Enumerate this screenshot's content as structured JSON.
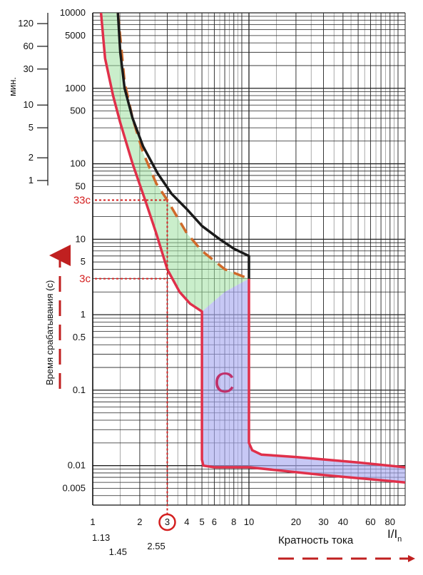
{
  "chart_data": {
    "type": "area",
    "title": "",
    "y_axis": {
      "label": "Время срабатывания (с)",
      "scale": "log",
      "range": [
        0.003,
        10000
      ],
      "tick_labels": [
        "10000",
        "5000",
        "1000",
        "500",
        "100",
        "50",
        "10",
        "5",
        "1",
        "0.5",
        "0.1",
        "0.01",
        "0.005"
      ],
      "tick_values": [
        10000,
        5000,
        1000,
        500,
        100,
        50,
        10,
        5,
        1,
        0.5,
        0.1,
        0.01,
        0.005
      ]
    },
    "minutes_axis": {
      "label": "мин.",
      "tick_labels": [
        "120",
        "60",
        "30",
        "10",
        "5",
        "2",
        "1"
      ],
      "tick_values": [
        120,
        60,
        30,
        10,
        5,
        2,
        1
      ]
    },
    "x_axis": {
      "label": "Кратность тока",
      "symbol": "I/I",
      "symbol_sub": "n",
      "scale": "log",
      "range": [
        1,
        100
      ],
      "tick_labels": [
        "1",
        "2",
        "3",
        "4",
        "5",
        "6",
        "8",
        "10",
        "20",
        "30",
        "40",
        "60",
        "80"
      ],
      "tick_values": [
        1,
        2,
        3,
        4,
        5,
        6,
        8,
        10,
        20,
        30,
        40,
        60,
        80
      ],
      "extra_labels": [
        "1.13",
        "1.45",
        "2.55"
      ],
      "extra_values": [
        1.13,
        1.45,
        2.55
      ]
    },
    "curve_label": "C",
    "annotations": [
      {
        "text": "33c",
        "x": 3,
        "y": 33
      },
      {
        "text": "3c",
        "x": 3,
        "y": 3
      }
    ],
    "series": [
      {
        "role": "lower-boundary",
        "color": "#e0304a",
        "x": [
          1.13,
          1.2,
          1.35,
          1.5,
          1.8,
          2.2,
          2.55,
          3,
          3.6,
          4.2,
          5,
          5,
          5.1,
          6,
          10,
          30,
          100
        ],
        "y": [
          10000,
          2500,
          800,
          350,
          100,
          30,
          12,
          4,
          2,
          1.4,
          1.1,
          0.012,
          0.01,
          0.0095,
          0.0095,
          0.0075,
          0.006
        ]
      },
      {
        "role": "tripping-boundary-dashed",
        "color": "#d06a2a",
        "dashed": true,
        "x": [
          1.45,
          1.6,
          1.8,
          2.1,
          2.55,
          3,
          4,
          5,
          7,
          10
        ],
        "y": [
          10000,
          1200,
          400,
          140,
          55,
          33,
          12,
          7,
          4,
          3
        ]
      },
      {
        "role": "upper-boundary",
        "color": "#1a1a1a",
        "x": [
          1.45,
          1.5,
          1.6,
          1.8,
          2.1,
          2.6,
          3.2,
          4,
          5,
          6.5,
          8,
          10,
          10,
          10
        ],
        "y": [
          10000,
          3000,
          1000,
          400,
          170,
          75,
          40,
          25,
          15,
          10,
          7.5,
          6,
          6,
          3
        ]
      },
      {
        "role": "magnetic-upper",
        "color": "#e0304a",
        "x": [
          10,
          10,
          10.5,
          12,
          20,
          50,
          100
        ],
        "y": [
          3,
          0.02,
          0.016,
          0.014,
          0.013,
          0.011,
          0.0095
        ]
      }
    ],
    "regions": [
      {
        "role": "thermal-band",
        "color": "#9fe0a0"
      },
      {
        "role": "magnetic-band",
        "color": "#a9aaf0"
      }
    ],
    "grid": true,
    "reference_lines": [
      {
        "axis": "x",
        "value": 3,
        "style": "dotted",
        "color": "#d42020"
      },
      {
        "axis": "y",
        "value": 33,
        "style": "dotted",
        "color": "#d42020"
      },
      {
        "axis": "y",
        "value": 3,
        "style": "dotted",
        "color": "#d42020"
      }
    ]
  }
}
